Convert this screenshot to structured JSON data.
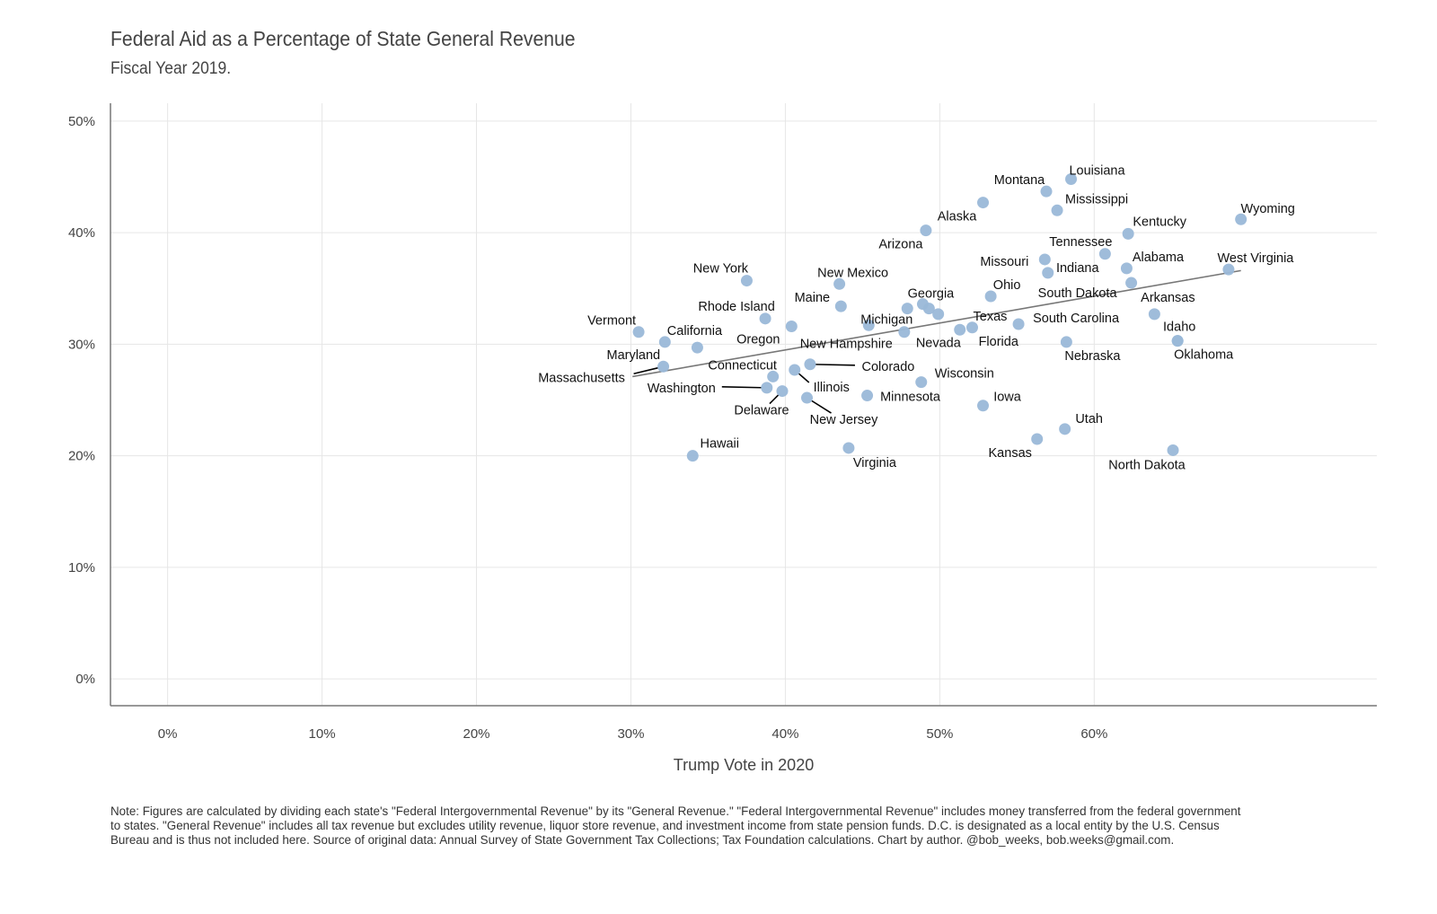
{
  "chart_data": {
    "type": "scatter",
    "title": "Federal Aid as a Percentage of State General Revenue",
    "subtitle": "Fiscal Year 2019.",
    "xlabel": "Trump Vote in 2020",
    "ylabel": "",
    "xlim": [
      -3.7,
      78.3
    ],
    "ylim": [
      -2.4,
      51.6
    ],
    "xticks": [
      0,
      10,
      20,
      30,
      40,
      50,
      60
    ],
    "xtick_labels": [
      "0%",
      "10%",
      "20%",
      "30%",
      "40%",
      "50%",
      "60%"
    ],
    "yticks": [
      0,
      10,
      20,
      30,
      40,
      50
    ],
    "ytick_labels": [
      "0%",
      "10%",
      "20%",
      "30%",
      "40%",
      "50%"
    ],
    "grid": true,
    "point_color": "#9ab8d8",
    "trendline": {
      "x": [
        30.1,
        69.5
      ],
      "y": [
        27.1,
        36.6
      ],
      "color": "#777777"
    },
    "points": [
      {
        "label": "Louisiana",
        "x": 58.5,
        "y": 44.8
      },
      {
        "label": "Montana",
        "x": 56.9,
        "y": 43.7
      },
      {
        "label": "Mississippi",
        "x": 57.6,
        "y": 42.0
      },
      {
        "label": "Wyoming",
        "x": 69.5,
        "y": 41.2
      },
      {
        "label": "Kentucky",
        "x": 62.2,
        "y": 39.9
      },
      {
        "label": "Alaska",
        "x": 52.8,
        "y": 42.7
      },
      {
        "label": "Arizona",
        "x": 49.1,
        "y": 40.2
      },
      {
        "label": "Tennessee",
        "x": 60.7,
        "y": 38.1
      },
      {
        "label": "Missouri",
        "x": 56.8,
        "y": 37.6
      },
      {
        "label": "Indiana",
        "x": 57.0,
        "y": 36.4
      },
      {
        "label": "Alabama",
        "x": 62.1,
        "y": 36.8
      },
      {
        "label": "West Virginia",
        "x": 68.7,
        "y": 36.7
      },
      {
        "label": "New York",
        "x": 37.5,
        "y": 35.7
      },
      {
        "label": "New Mexico",
        "x": 43.5,
        "y": 35.4
      },
      {
        "label": "South Dakota",
        "x": 62.4,
        "y": 35.5
      },
      {
        "label": "Ohio",
        "x": 53.3,
        "y": 34.3
      },
      {
        "label": "Maine",
        "x": 43.6,
        "y": 33.4
      },
      {
        "label": "Georgia",
        "x": 48.9,
        "y": 33.6
      },
      {
        "label": "",
        "x": 49.3,
        "y": 33.2
      },
      {
        "label": "",
        "x": 49.9,
        "y": 32.7
      },
      {
        "label": "Arkansas",
        "x": 63.9,
        "y": 32.7
      },
      {
        "label": "South Carolina",
        "x": 55.1,
        "y": 31.8
      },
      {
        "label": "Texas",
        "x": 52.1,
        "y": 31.5
      },
      {
        "label": "Florida",
        "x": 51.3,
        "y": 31.3
      },
      {
        "label": "Michigan",
        "x": 47.9,
        "y": 33.2
      },
      {
        "label": "Nevada",
        "x": 47.7,
        "y": 31.1
      },
      {
        "label": "New Hampshire",
        "x": 45.4,
        "y": 31.7
      },
      {
        "label": "Rhode Island",
        "x": 38.7,
        "y": 32.3
      },
      {
        "label": "Oregon",
        "x": 40.4,
        "y": 31.6
      },
      {
        "label": "Vermont",
        "x": 30.5,
        "y": 31.1
      },
      {
        "label": "Maryland",
        "x": 32.2,
        "y": 30.2
      },
      {
        "label": "California",
        "x": 34.3,
        "y": 29.7
      },
      {
        "label": "Massachusetts",
        "x": 32.1,
        "y": 28.0
      },
      {
        "label": "Idaho",
        "x": 65.4,
        "y": 30.3
      },
      {
        "label": "Oklahoma",
        "x": 65.4,
        "y": 30.3
      },
      {
        "label": "Nebraska",
        "x": 58.2,
        "y": 30.2
      },
      {
        "label": "Colorado",
        "x": 41.6,
        "y": 28.2
      },
      {
        "label": "Illinois",
        "x": 40.6,
        "y": 27.7
      },
      {
        "label": "Connecticut",
        "x": 39.2,
        "y": 27.1
      },
      {
        "label": "Wisconsin",
        "x": 48.8,
        "y": 26.6
      },
      {
        "label": "Washington",
        "x": 38.8,
        "y": 26.1
      },
      {
        "label": "Delaware",
        "x": 39.8,
        "y": 25.8
      },
      {
        "label": "Minnesota",
        "x": 45.3,
        "y": 25.4
      },
      {
        "label": "New Jersey",
        "x": 41.4,
        "y": 25.2
      },
      {
        "label": "Iowa",
        "x": 52.8,
        "y": 24.5
      },
      {
        "label": "Utah",
        "x": 58.1,
        "y": 22.4
      },
      {
        "label": "Kansas",
        "x": 56.3,
        "y": 21.5
      },
      {
        "label": "North Dakota",
        "x": 65.1,
        "y": 20.5
      },
      {
        "label": "Virginia",
        "x": 44.1,
        "y": 20.7
      },
      {
        "label": "Hawaii",
        "x": 34.0,
        "y": 20.0
      }
    ]
  },
  "note": "Note: Figures are calculated by dividing each state's \"Federal Intergovernmental Revenue\" by its \"General Revenue.\" \"Federal Intergovernmental Revenue\" includes money transferred from the federal government to states. \"General Revenue\" includes all tax revenue but excludes utility revenue, liquor store revenue, and investment income from state pension funds. D.C. is designated as a local entity by the U.S. Census Bureau and is thus not included here. Source of original data: Annual Survey of State Government Tax Collections; Tax Foundation calculations. Chart by author. @bob_weeks, bob.weeks@gmail.com."
}
